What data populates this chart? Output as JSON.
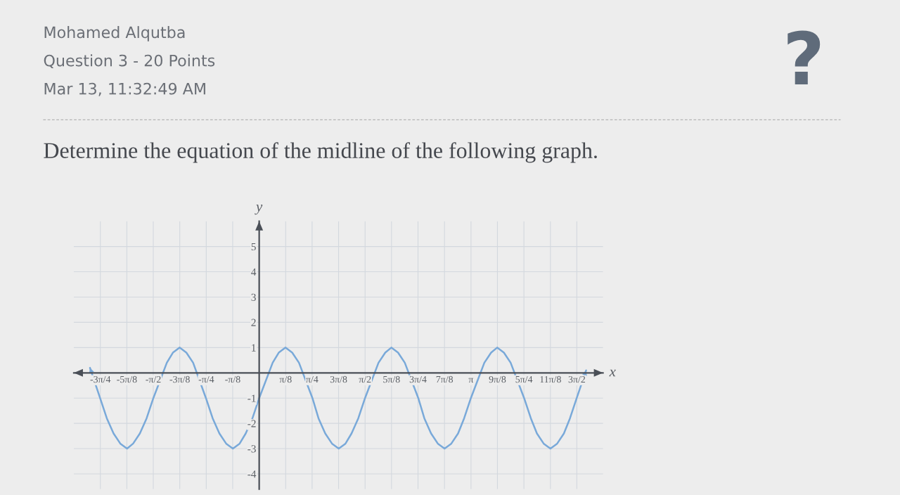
{
  "chart_data": {
    "type": "line",
    "annotations": [
      "Mohamed Alqutba",
      "Question 3 - 20 Points",
      "Mar 13, 11:32:49 AM",
      "Determine the equation of the midline of the following graph.",
      "?"
    ],
    "xlabel": "x",
    "ylabel": "y",
    "x": [
      -2.51,
      -2.36,
      -2.26,
      -2.16,
      -2.06,
      -1.96,
      -1.87,
      -1.77,
      -1.67,
      -1.57,
      -1.37,
      -1.28,
      -1.18,
      -1.08,
      -0.98,
      -0.79,
      -0.69,
      -0.59,
      -0.49,
      -0.39,
      -0.29,
      -0.2,
      -0.1,
      0,
      0.2,
      0.29,
      0.39,
      0.49,
      0.59,
      0.79,
      0.88,
      0.98,
      1.08,
      1.18,
      1.28,
      1.37,
      1.47,
      1.57,
      1.77,
      1.87,
      1.96,
      2.06,
      2.16,
      2.36,
      2.45,
      2.55,
      2.65,
      2.75,
      2.85,
      2.95,
      3.04,
      3.14,
      3.34,
      3.44,
      3.53,
      3.63,
      3.73,
      3.93,
      4.03,
      4.12,
      4.22,
      4.32,
      4.42,
      4.52,
      4.61,
      4.71,
      4.85
    ],
    "series": [
      {
        "color": "#79a9d9",
        "values": [
          0.2,
          -1,
          -1.8,
          -2.4,
          -2.8,
          -3,
          -2.8,
          -2.4,
          -1.8,
          -1,
          0.4,
          0.8,
          1,
          0.8,
          0.4,
          -1,
          -1.8,
          -2.4,
          -2.8,
          -3,
          -2.8,
          -2.4,
          -1.8,
          -1,
          0.4,
          0.8,
          1,
          0.8,
          0.4,
          -1,
          -1.8,
          -2.4,
          -2.8,
          -3,
          -2.8,
          -2.4,
          -1.8,
          -1,
          0.4,
          0.8,
          1,
          0.8,
          0.4,
          -1,
          -1.8,
          -2.4,
          -2.8,
          -3,
          -2.8,
          -2.4,
          -1.8,
          -1,
          0.4,
          0.8,
          1,
          0.8,
          0.4,
          -1,
          -1.8,
          -2.4,
          -2.8,
          -3,
          -2.8,
          -2.4,
          -1.8,
          -1,
          0.1
        ]
      }
    ],
    "xlim": [
      -2.75,
      5.1
    ],
    "ylim": [
      -4.6,
      6.0
    ],
    "xticks": [
      {
        "value": -2.356,
        "label": "-3π/4"
      },
      {
        "value": -1.963,
        "label": "-5π/8"
      },
      {
        "value": -1.571,
        "label": "-π/2"
      },
      {
        "value": -1.178,
        "label": "-3π/8"
      },
      {
        "value": -0.785,
        "label": "-π/4"
      },
      {
        "value": -0.393,
        "label": "-π/8"
      },
      {
        "value": 0.393,
        "label": "π/8"
      },
      {
        "value": 0.785,
        "label": "π/4"
      },
      {
        "value": 1.178,
        "label": "3π/8"
      },
      {
        "value": 1.571,
        "label": "π/2"
      },
      {
        "value": 1.963,
        "label": "5π/8"
      },
      {
        "value": 2.356,
        "label": "3π/4"
      },
      {
        "value": 2.749,
        "label": "7π/8"
      },
      {
        "value": 3.142,
        "label": "π"
      },
      {
        "value": 3.534,
        "label": "9π/8"
      },
      {
        "value": 3.927,
        "label": "5π/4"
      },
      {
        "value": 4.32,
        "label": "11π/8"
      },
      {
        "value": 4.712,
        "label": "3π/2"
      }
    ],
    "yticks": [
      -4,
      -3,
      -2,
      -1,
      1,
      2,
      3,
      4,
      5
    ],
    "grid": true
  }
}
